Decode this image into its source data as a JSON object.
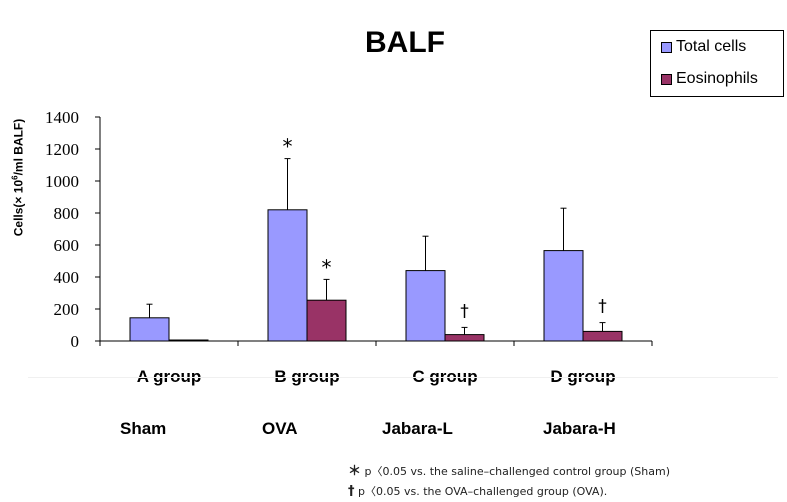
{
  "chart_data": {
    "type": "bar",
    "title": "BALF",
    "ylabel_main": "Cells(× 10",
    "ylabel_sup": "6",
    "ylabel_tail": "/ml BALF)",
    "ylim": [
      0,
      1400
    ],
    "yticks": [
      0,
      200,
      400,
      600,
      800,
      1000,
      1200,
      1400
    ],
    "categories": [
      "A group",
      "B group",
      "C group",
      "D group"
    ],
    "sub_labels": [
      "Sham",
      "OVA",
      "Jabara-L",
      "Jabara-H"
    ],
    "series": [
      {
        "name": "Total cells",
        "color": "#9999ff",
        "values": [
          145,
          820,
          440,
          565
        ],
        "errors": [
          85,
          320,
          215,
          265
        ],
        "markers": [
          "",
          "*",
          "",
          ""
        ]
      },
      {
        "name": "Eosinophils",
        "color": "#993366",
        "values": [
          2,
          255,
          40,
          60
        ],
        "errors": [
          2,
          130,
          45,
          55
        ],
        "markers": [
          "",
          "*",
          "†",
          "†"
        ]
      }
    ],
    "legend_position": "top-right",
    "grid": false
  },
  "footnotes": [
    {
      "mark": "＊",
      "text": "p〈0.05 vs. the saline–challenged control group (Sham)"
    },
    {
      "mark": "†",
      "text": "p〈0.05 vs. the OVA–challenged group (OVA)."
    }
  ]
}
